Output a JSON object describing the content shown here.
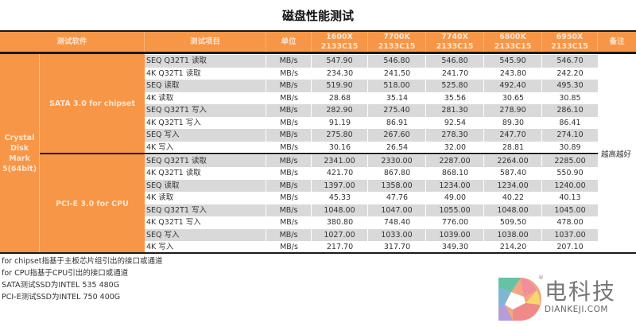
{
  "title": "磁盘性能测试",
  "header": {
    "software": "测试软件",
    "item": "测试项目",
    "unit": "单位",
    "cpus": [
      {
        "name": "1600X",
        "mem": "2133C15"
      },
      {
        "name": "7700K",
        "mem": "2133C15"
      },
      {
        "name": "7740X",
        "mem": "2133C15"
      },
      {
        "name": "6800K",
        "mem": "2133C15"
      },
      {
        "name": "6950X",
        "mem": "2133C15"
      }
    ],
    "remark": "备注"
  },
  "software": "Crystal Disk Mark 5(64bit)",
  "groups": [
    {
      "name": "SATA 3.0 for chipset",
      "rows": [
        {
          "item": "SEQ Q32T1 读取",
          "unit": "MB/s",
          "values": [
            "547.90",
            "546.80",
            "546.80",
            "545.90",
            "546.70"
          ]
        },
        {
          "item": "4K Q32T1 读取",
          "unit": "MB/s",
          "values": [
            "234.30",
            "241.50",
            "241.70",
            "243.80",
            "242.20"
          ]
        },
        {
          "item": "SEQ 读取",
          "unit": "MB/s",
          "values": [
            "519.90",
            "518.00",
            "525.80",
            "492.40",
            "495.30"
          ]
        },
        {
          "item": "4K 读取",
          "unit": "MB/s",
          "values": [
            "28.68",
            "35.14",
            "35.56",
            "30.65",
            "30.85"
          ]
        },
        {
          "item": "SEQ Q32T1 写入",
          "unit": "MB/s",
          "values": [
            "282.90",
            "275.40",
            "281.30",
            "278.90",
            "286.10"
          ]
        },
        {
          "item": "4K Q32T1 写入",
          "unit": "MB/s",
          "values": [
            "91.19",
            "86.91",
            "92.54",
            "89.30",
            "86.41"
          ]
        },
        {
          "item": "SEQ 写入",
          "unit": "MB/s",
          "values": [
            "275.80",
            "267.60",
            "278.30",
            "247.70",
            "274.10"
          ]
        },
        {
          "item": "4K 写入",
          "unit": "MB/s",
          "values": [
            "30.16",
            "26.54",
            "32.00",
            "28.81",
            "30.89"
          ]
        }
      ]
    },
    {
      "name": "PCI-E 3.0 for CPU",
      "rows": [
        {
          "item": "SEQ Q32T1 读取",
          "unit": "MB/s",
          "values": [
            "2341.00",
            "2330.00",
            "2287.00",
            "2264.00",
            "2285.00"
          ]
        },
        {
          "item": "4K Q32T1 读取",
          "unit": "MB/s",
          "values": [
            "421.70",
            "867.80",
            "868.10",
            "587.40",
            "550.90"
          ]
        },
        {
          "item": "SEQ 读取",
          "unit": "MB/s",
          "values": [
            "1397.00",
            "1358.00",
            "1234.00",
            "1234.00",
            "1240.00"
          ]
        },
        {
          "item": "4K 读取",
          "unit": "MB/s",
          "values": [
            "45.33",
            "47.76",
            "49.00",
            "40.22",
            "40.13"
          ]
        },
        {
          "item": "SEQ Q32T1 写入",
          "unit": "MB/s",
          "values": [
            "1048.00",
            "1047.00",
            "1055.00",
            "1048.00",
            "1045.00"
          ]
        },
        {
          "item": "4K Q32T1 写入",
          "unit": "MB/s",
          "values": [
            "380.80",
            "748.40",
            "776.00",
            "509.50",
            "478.00"
          ]
        },
        {
          "item": "SEQ 写入",
          "unit": "MB/s",
          "values": [
            "1027.00",
            "1033.00",
            "1039.00",
            "1038.00",
            "1037.00"
          ]
        },
        {
          "item": "4K 写入",
          "unit": "MB/s",
          "values": [
            "217.70",
            "317.70",
            "349.30",
            "214.20",
            "207.10"
          ]
        }
      ]
    }
  ],
  "remark_text": "越高越好",
  "notes": [
    "for chipset指基于主板芯片组引出的接口或通道",
    "for CPU指基于CPU引出的接口或通道",
    "SATA测试SSD为INTEL 535 480G",
    "PCI-E测试SSD为INTEL 750 400G"
  ],
  "logo": {
    "cn": "电科技",
    "en": "DIANKEJI.COM",
    "reg": "®"
  },
  "colors": {
    "header_orange": "#f79646",
    "header_text": "#fbe4d0",
    "row_gray": "#d9d9d9",
    "rule": "#1a1a1a"
  }
}
